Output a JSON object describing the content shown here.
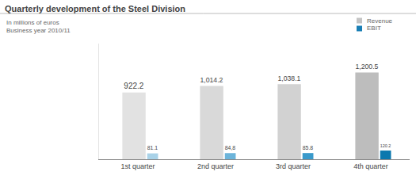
{
  "chart_data": {
    "type": "bar",
    "title": "Quarterly development of the Steel Division",
    "subtitle": [
      "In millions of euros",
      "Business year 2010/11"
    ],
    "categories": [
      "1st quarter",
      "2nd quarter",
      "3rd quarter",
      "4th quarter"
    ],
    "series": [
      {
        "name": "Revenue",
        "color": "#c4c4c4",
        "colors": [
          "#e2e2e2",
          "#d9d9d9",
          "#d2d2d2",
          "#bdbdbd"
        ],
        "values": [
          922.2,
          1014.2,
          1038.1,
          1200.5
        ],
        "value_labels": [
          "922.2",
          "1,014.2",
          "1,038.1",
          "1,200.5"
        ]
      },
      {
        "name": "EBIT",
        "color": "#1a7fb5",
        "colors": [
          "#a9d2e8",
          "#6cb4da",
          "#3a9acb",
          "#0b78ae"
        ],
        "values": [
          81.1,
          84.8,
          85.8,
          120.2
        ],
        "value_labels": [
          "81.1",
          "84,8",
          "85.8",
          "120.2"
        ]
      }
    ],
    "ylim": [
      0,
      1600
    ],
    "tick_labels": "x",
    "data_labels": true,
    "legend": "upper right",
    "grid": false
  }
}
